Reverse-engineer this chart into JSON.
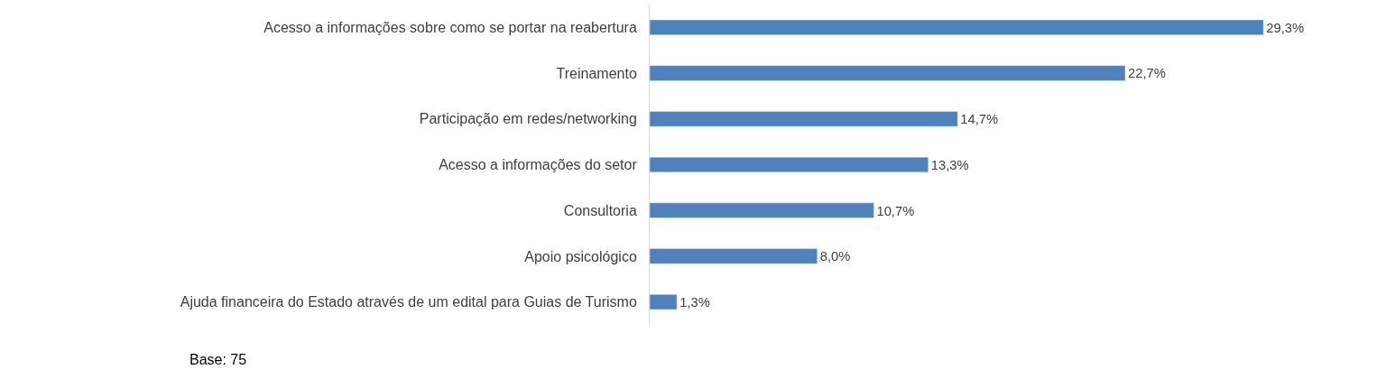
{
  "chart_data": {
    "type": "bar",
    "orientation": "horizontal",
    "categories": [
      "Acesso a informações sobre como se portar na reabertura",
      "Treinamento",
      "Participação em redes/networking",
      "Acesso a informações do setor",
      "Consultoria",
      "Apoio psicológico",
      "Ajuda financeira do Estado através de um edital para Guias de Turismo"
    ],
    "values": [
      29.3,
      22.7,
      14.7,
      13.3,
      10.7,
      8.0,
      1.3
    ],
    "value_labels": [
      "29,3%",
      "22,7%",
      "14,7%",
      "13,3%",
      "10,7%",
      "8,0%",
      "1,3%"
    ],
    "color": "#4f81bd",
    "legend": false,
    "tick_labels": "y",
    "annotations": [
      "Base: 75"
    ]
  }
}
